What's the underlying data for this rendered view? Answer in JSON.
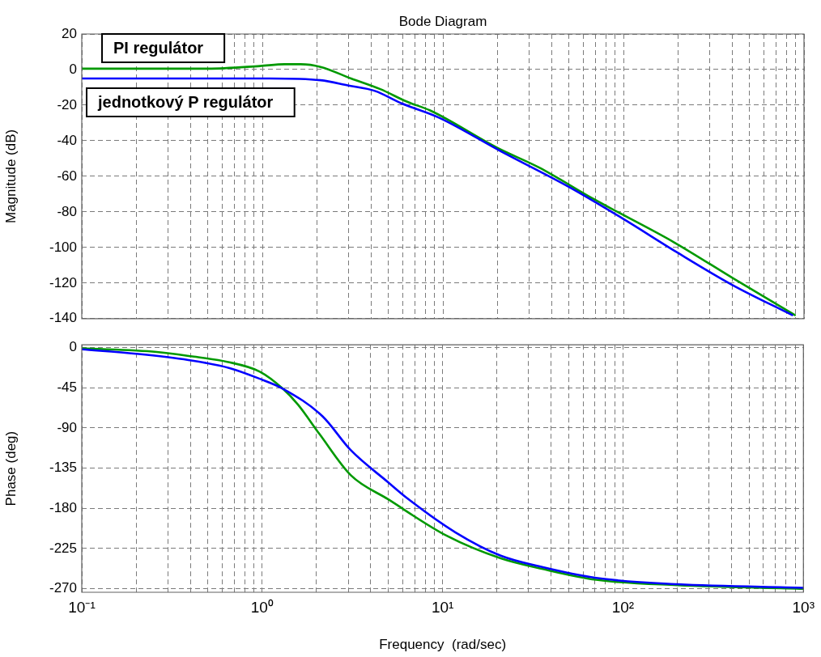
{
  "chart_data": [
    {
      "type": "line",
      "title": "Bode Diagram",
      "ylabel": "Magnitude (dB)",
      "log": "x",
      "grid": true,
      "tick_labels": "y",
      "xlim": [
        0.1,
        1000
      ],
      "ylim": [
        -140,
        20
      ],
      "yticks": [
        -140,
        -120,
        -100,
        -80,
        -60,
        -40,
        -20,
        0,
        20
      ],
      "xticks": [
        {
          "value": 0.1,
          "label": null
        },
        {
          "value": 0.2,
          "label": null
        },
        {
          "value": 0.3,
          "label": null
        },
        {
          "value": 0.4,
          "label": null
        },
        {
          "value": 0.5,
          "label": null
        },
        {
          "value": 0.6,
          "label": null
        },
        {
          "value": 0.7,
          "label": null
        },
        {
          "value": 0.8,
          "label": null
        },
        {
          "value": 0.9,
          "label": null
        },
        {
          "value": 1,
          "label": null
        },
        {
          "value": 2,
          "label": null
        },
        {
          "value": 3,
          "label": null
        },
        {
          "value": 4,
          "label": null
        },
        {
          "value": 5,
          "label": null
        },
        {
          "value": 6,
          "label": null
        },
        {
          "value": 7,
          "label": null
        },
        {
          "value": 8,
          "label": null
        },
        {
          "value": 9,
          "label": null
        },
        {
          "value": 10,
          "label": null
        },
        {
          "value": 20,
          "label": null
        },
        {
          "value": 30,
          "label": null
        },
        {
          "value": 40,
          "label": null
        },
        {
          "value": 50,
          "label": null
        },
        {
          "value": 60,
          "label": null
        },
        {
          "value": 70,
          "label": null
        },
        {
          "value": 80,
          "label": null
        },
        {
          "value": 90,
          "label": null
        },
        {
          "value": 100,
          "label": null
        },
        {
          "value": 200,
          "label": null
        },
        {
          "value": 300,
          "label": null
        },
        {
          "value": 400,
          "label": null
        },
        {
          "value": 500,
          "label": null
        },
        {
          "value": 600,
          "label": null
        },
        {
          "value": 700,
          "label": null
        },
        {
          "value": 800,
          "label": null
        },
        {
          "value": 900,
          "label": null
        },
        {
          "value": 1000,
          "label": null
        }
      ],
      "series": [
        {
          "name": "jednotkový P regulátor",
          "color": "#0000ff",
          "x": [
            0.1,
            1.1,
            2.1,
            3,
            4.2,
            5.9,
            9.5,
            21,
            50,
            100,
            200,
            400,
            860
          ],
          "values": [
            -5,
            -5,
            -6,
            -9,
            -12,
            -19,
            -27,
            -46,
            -66,
            -84,
            -103,
            -121,
            -138
          ]
        },
        {
          "name": "PI regulátor",
          "color": "#009900",
          "x": [
            0.1,
            0.5,
            0.97,
            1.33,
            1.63,
            2.1,
            3.1,
            4.5,
            6.3,
            8.5,
            20,
            34,
            69,
            190,
            415,
            890
          ],
          "values": [
            0.5,
            0.5,
            2,
            3,
            3,
            1.5,
            -5,
            -11,
            -18,
            -23,
            -44,
            -55,
            -73,
            -97,
            -118,
            -138
          ]
        }
      ]
    },
    {
      "type": "line",
      "xlabel": "Frequency  (rad/sec)",
      "ylabel": "Phase (deg)",
      "log": "x",
      "grid": true,
      "xlim": [
        0.1,
        1000
      ],
      "ylim": [
        -274,
        3
      ],
      "yticks": [
        -270,
        -225,
        -180,
        -135,
        -90,
        -45,
        0
      ],
      "xticks": [
        {
          "value": 0.1,
          "label": "10⁻¹"
        },
        {
          "value": 0.2,
          "label": null
        },
        {
          "value": 0.3,
          "label": null
        },
        {
          "value": 0.4,
          "label": null
        },
        {
          "value": 0.5,
          "label": null
        },
        {
          "value": 0.6,
          "label": null
        },
        {
          "value": 0.7,
          "label": null
        },
        {
          "value": 0.8,
          "label": null
        },
        {
          "value": 0.9,
          "label": null
        },
        {
          "value": 1,
          "label": "10⁰"
        },
        {
          "value": 2,
          "label": null
        },
        {
          "value": 3,
          "label": null
        },
        {
          "value": 4,
          "label": null
        },
        {
          "value": 5,
          "label": null
        },
        {
          "value": 6,
          "label": null
        },
        {
          "value": 7,
          "label": null
        },
        {
          "value": 8,
          "label": null
        },
        {
          "value": 9,
          "label": null
        },
        {
          "value": 10,
          "label": "10¹"
        },
        {
          "value": 20,
          "label": null
        },
        {
          "value": 30,
          "label": null
        },
        {
          "value": 40,
          "label": null
        },
        {
          "value": 50,
          "label": null
        },
        {
          "value": 60,
          "label": null
        },
        {
          "value": 70,
          "label": null
        },
        {
          "value": 80,
          "label": null
        },
        {
          "value": 90,
          "label": null
        },
        {
          "value": 100,
          "label": "10²"
        },
        {
          "value": 200,
          "label": null
        },
        {
          "value": 300,
          "label": null
        },
        {
          "value": 400,
          "label": null
        },
        {
          "value": 500,
          "label": null
        },
        {
          "value": 600,
          "label": null
        },
        {
          "value": 700,
          "label": null
        },
        {
          "value": 800,
          "label": null
        },
        {
          "value": 900,
          "label": null
        },
        {
          "value": 1000,
          "label": "10³"
        }
      ],
      "series": [
        {
          "color": "#0000ff",
          "x": [
            0.1,
            0.2,
            0.39,
            0.66,
            0.97,
            1.3,
            2.16,
            3.1,
            5,
            6.3,
            11.8,
            21,
            36,
            71,
            200,
            1000
          ],
          "values": [
            -2,
            -7,
            -14,
            -23,
            -35,
            -46,
            -77,
            -115,
            -151,
            -168,
            -207,
            -233,
            -246,
            -258,
            -265,
            -269
          ]
        },
        {
          "color": "#009900",
          "x": [
            0.1,
            0.26,
            0.41,
            0.64,
            0.97,
            1.3,
            1.58,
            2.08,
            3.1,
            5,
            10.6,
            21,
            36,
            71,
            200,
            1000
          ],
          "values": [
            -1,
            -5,
            -10,
            -16,
            -27,
            -46,
            -64,
            -97,
            -143,
            -170,
            -211,
            -236,
            -248,
            -260,
            -266,
            -270
          ]
        }
      ]
    }
  ]
}
